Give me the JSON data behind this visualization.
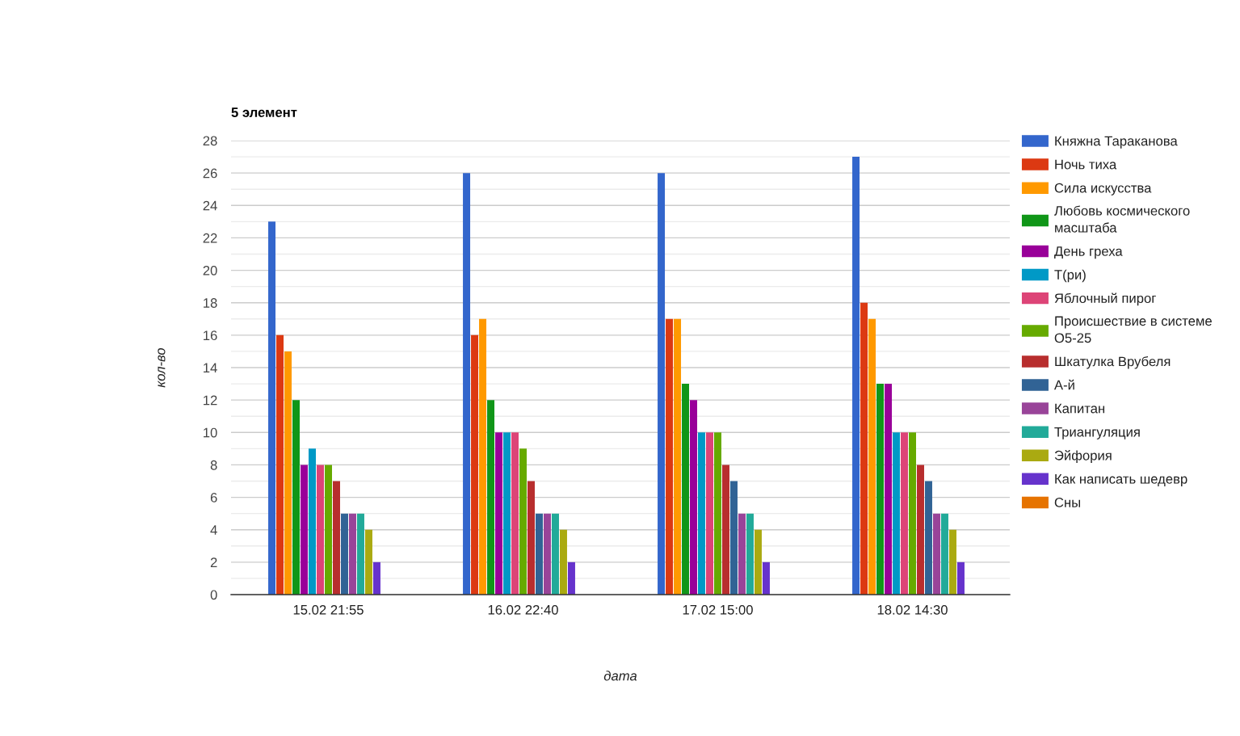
{
  "chart_data": {
    "type": "bar",
    "title": "5 элемент",
    "xlabel": "дата",
    "ylabel": "кол-во",
    "categories": [
      "15.02 21:55",
      "16.02 22:40",
      "17.02 15:00",
      "18.02 14:30"
    ],
    "series": [
      {
        "name": "Княжна Тараканова",
        "color": "#3366cc",
        "values": [
          23,
          26,
          26,
          27
        ]
      },
      {
        "name": "Ночь тиха",
        "color": "#dc3912",
        "values": [
          16,
          16,
          17,
          18
        ]
      },
      {
        "name": "Сила искусства",
        "color": "#ff9900",
        "values": [
          15,
          17,
          17,
          17
        ]
      },
      {
        "name": "Любовь космического масштаба",
        "color": "#109618",
        "values": [
          12,
          12,
          13,
          13
        ]
      },
      {
        "name": "День греха",
        "color": "#990099",
        "values": [
          8,
          10,
          12,
          13
        ]
      },
      {
        "name": "Т(ри)",
        "color": "#0099c6",
        "values": [
          9,
          10,
          10,
          10
        ]
      },
      {
        "name": "Яблочный пирог",
        "color": "#dd4477",
        "values": [
          8,
          10,
          10,
          10
        ]
      },
      {
        "name": "Происшествие в системе О5-25",
        "color": "#66aa00",
        "values": [
          8,
          9,
          10,
          10
        ]
      },
      {
        "name": "Шкатулка Врубеля",
        "color": "#b82e2e",
        "values": [
          7,
          7,
          8,
          8
        ]
      },
      {
        "name": "А-й",
        "color": "#316395",
        "values": [
          5,
          5,
          7,
          7
        ]
      },
      {
        "name": "Капитан",
        "color": "#994499",
        "values": [
          5,
          5,
          5,
          5
        ]
      },
      {
        "name": "Триангуляция",
        "color": "#22aa99",
        "values": [
          5,
          5,
          5,
          5
        ]
      },
      {
        "name": "Эйфория",
        "color": "#aaaa11",
        "values": [
          4,
          4,
          4,
          4
        ]
      },
      {
        "name": "Как написать шедевр",
        "color": "#6633cc",
        "values": [
          2,
          2,
          2,
          2
        ]
      },
      {
        "name": "Сны",
        "color": "#e67300",
        "values": [
          null,
          null,
          null,
          null
        ]
      }
    ],
    "ylim": [
      0,
      28
    ],
    "yticks": [
      0,
      {
        "value": 1,
        "label": null
      },
      2,
      {
        "value": 3,
        "label": null
      },
      4,
      {
        "value": 5,
        "label": null
      },
      6,
      {
        "value": 7,
        "label": null
      },
      8,
      {
        "value": 9,
        "label": null
      },
      10,
      {
        "value": 11,
        "label": null
      },
      12,
      {
        "value": 13,
        "label": null
      },
      14,
      {
        "value": 15,
        "label": null
      },
      16,
      {
        "value": 17,
        "label": null
      },
      18,
      {
        "value": 19,
        "label": null
      },
      20,
      {
        "value": 21,
        "label": null
      },
      22,
      {
        "value": 23,
        "label": null
      },
      24,
      {
        "value": 25,
        "label": null
      },
      26,
      {
        "value": 27,
        "label": null
      },
      28
    ],
    "grid": "y",
    "legend": "right"
  }
}
